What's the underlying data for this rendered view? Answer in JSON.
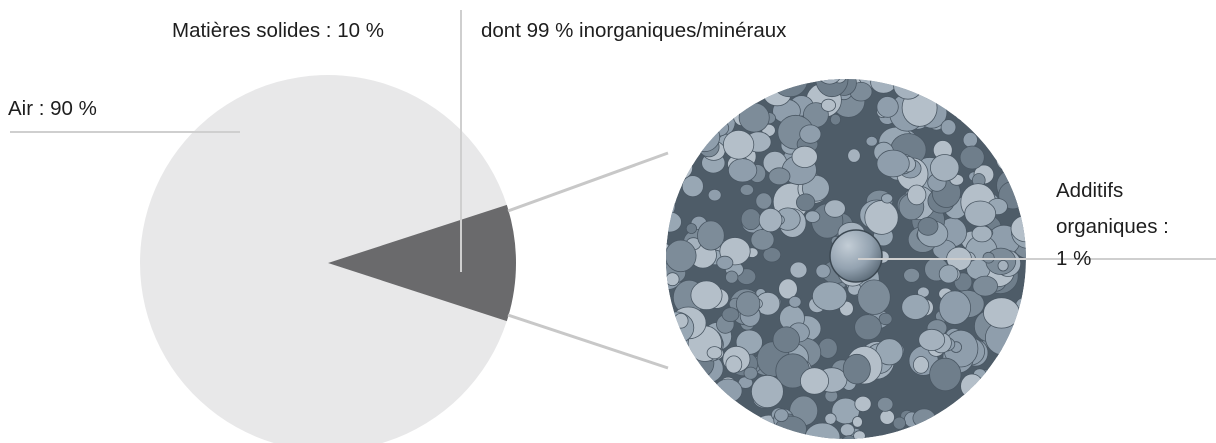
{
  "chart_data": {
    "type": "pie",
    "title": "",
    "slices": [
      {
        "label": "Air : 90 %",
        "value": 90,
        "color": "#e8e8e9"
      },
      {
        "label": "Matières solides : 10 %",
        "value": 10,
        "color": "#6a6a6c"
      }
    ],
    "detail": {
      "solids_note": "dont 99 % inorganiques/minéraux",
      "organic_lines": [
        "Additifs",
        "organiques :",
        "1 %"
      ],
      "image": "clay-pellets-photo"
    },
    "connector_color": "#c8c8c8",
    "background": "#ffffff"
  }
}
